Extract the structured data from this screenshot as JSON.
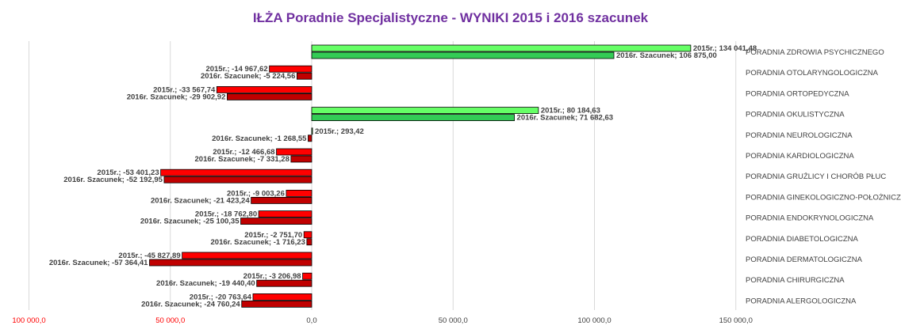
{
  "colors": {
    "title": "#7030a0",
    "series_2015": "#ff0000",
    "series_2015_positive": "#66ff66",
    "series_2016": "#c00000",
    "series_2016_positive": "#33cc55",
    "axis_negative_text": "#ff0000",
    "axis_text": "#404040",
    "gridline": "#d9d9d9"
  },
  "chart_data": {
    "type": "bar",
    "orientation": "horizontal",
    "title": "IŁŻA Poradnie  Specjalistyczne  - WYNIKI  2015 i 2016 szacunek",
    "xlim": [
      -100000,
      150000
    ],
    "x_ticks": [
      {
        "value": -100000,
        "label": "100 000,0"
      },
      {
        "value": -50000,
        "label": "50 000,0"
      },
      {
        "value": 0,
        "label": "0,0"
      },
      {
        "value": 50000,
        "label": "50 000,0"
      },
      {
        "value": 100000,
        "label": "100 000,0"
      },
      {
        "value": 150000,
        "label": "150 000,0"
      }
    ],
    "grid": true,
    "legend": "none",
    "categories": [
      "PORADNIA ZDROWIA PSYCHICZNEGO",
      "PORADNIA OTOLARYNGOLOGICZNA",
      "PORADNIA ORTOPEDYCZNA",
      "PORADNIA OKULISTYCZNA",
      "PORADNIA NEUROLOGICZNA",
      "PORADNIA KARDIOLOGICZNA",
      "PORADNIA GRUŹLICY I CHORÓB PŁUC",
      "PORADNIA GINEKOLOGICZNO-POŁOŻNICZA",
      "PORADNIA ENDOKRYNOLOGICZNA",
      "PORADNIA DIABETOLOGICZNA",
      "PORADNIA DERMATOLOGICZNA",
      "PORADNIA CHIRURGICZNA",
      "PORADNIA ALERGOLOGICZNA"
    ],
    "series": [
      {
        "name": "2015r.",
        "values": [
          134041.48,
          -14967.62,
          -33567.74,
          80184.63,
          293.42,
          -12466.68,
          -53401.23,
          -9003.26,
          -18762.8,
          -2751.7,
          -45827.89,
          -3206.98,
          -20763.64
        ],
        "labels": [
          "2015r.; 134 041,48",
          "2015r.; -14 967,62",
          "2015r.; -33 567,74",
          "2015r.; 80 184,63",
          "2015r.; 293,42",
          "2015r.; -12 466,68",
          "2015r.; -53 401,23",
          "2015r.; -9 003,26",
          "2015r.; -18 762,80",
          "2015r.; -2 751,70",
          "2015r.; -45 827,89",
          "2015r.; -3 206,98",
          "2015r.; -20 763,64"
        ]
      },
      {
        "name": "2016r. Szacunek",
        "values": [
          106875.0,
          -5224.56,
          -29902.92,
          71682.63,
          -1268.55,
          -7331.28,
          -52192.95,
          -21423.24,
          -25100.35,
          -1716.23,
          -57364.41,
          -19440.4,
          -24760.24
        ],
        "labels": [
          "2016r. Szacunek; 106 875,00",
          "2016r. Szacunek; -5 224,56",
          "2016r. Szacunek; -29 902,92",
          "2016r. Szacunek; 71 682,63",
          "2016r. Szacunek; -1 268,55",
          "2016r. Szacunek; -7 331,28",
          "2016r. Szacunek; -52 192,95",
          "2016r. Szacunek; -21 423,24",
          "2016r. Szacunek; -25 100,35",
          "2016r. Szacunek; -1 716,23",
          "2016r. Szacunek; -57 364,41",
          "2016r. Szacunek; -19 440,40",
          "2016r. Szacunek; -24 760,24"
        ]
      }
    ]
  }
}
